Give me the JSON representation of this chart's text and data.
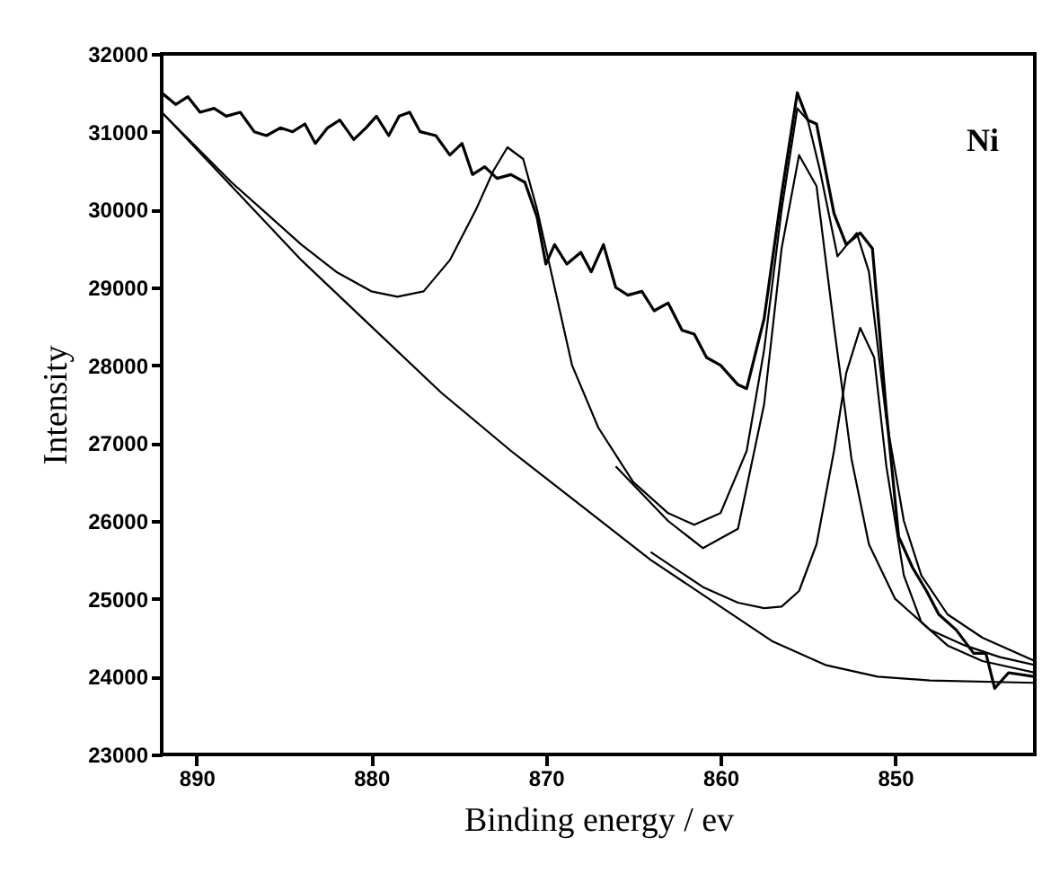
{
  "chart_data": {
    "type": "line",
    "xlabel": "Binding energy / ev",
    "ylabel": "Intensity",
    "annotations": [
      "Ni"
    ],
    "xlim": [
      892,
      842
    ],
    "xticks": [
      890,
      880,
      870,
      860,
      850
    ],
    "ylim": [
      23000,
      32000
    ],
    "yticks": [
      23000,
      24000,
      25000,
      26000,
      27000,
      28000,
      29000,
      30000,
      31000,
      32000
    ],
    "grid": false,
    "marker": "none",
    "line_style": "solid",
    "series": [
      {
        "color": "#000000",
        "x": [
          892,
          891.2,
          890.5,
          889.8,
          889,
          888.3,
          887.5,
          886.7,
          886,
          885.2,
          884.5,
          883.8,
          883.2,
          882.5,
          881.8,
          881,
          880.3,
          879.7,
          879,
          878.4,
          877.8,
          877.2,
          876.3,
          875.5,
          874.8,
          874.2,
          873.5,
          872.8,
          872,
          871.2,
          870.5,
          870,
          869.5,
          868.8,
          868,
          867.4,
          866.7,
          866,
          865.3,
          864.5,
          863.8,
          863,
          862.2,
          861.5,
          860.8,
          860,
          859,
          858.5,
          857.5,
          856.5,
          855.6,
          855,
          854.5,
          853.5,
          852.8,
          852,
          851.3,
          850.5,
          849.8,
          849,
          848.2,
          847.5,
          846.5,
          845.5,
          844.8,
          844.3,
          843.5,
          842
        ],
        "values": [
          31500,
          31350,
          31450,
          31250,
          31300,
          31200,
          31250,
          31000,
          30950,
          31050,
          31000,
          31100,
          30850,
          31050,
          31150,
          30900,
          31050,
          31200,
          30950,
          31200,
          31250,
          31000,
          30950,
          30700,
          30850,
          30450,
          30550,
          30400,
          30450,
          30350,
          29900,
          29300,
          29550,
          29300,
          29450,
          29200,
          29550,
          29000,
          28900,
          28950,
          28700,
          28800,
          28450,
          28400,
          28100,
          28000,
          27750,
          27700,
          28600,
          30200,
          31500,
          31150,
          31100,
          29950,
          29550,
          29700,
          29500,
          27400,
          25800,
          25400,
          25100,
          24800,
          24600,
          24300,
          24300,
          23850,
          24050,
          24000
        ]
      },
      {
        "color": "#000000",
        "x": [
          892,
          890,
          888,
          886,
          884,
          882,
          880,
          878.5,
          877,
          875.5,
          874,
          873,
          872.2,
          871.3,
          870.5,
          869.5,
          868.5,
          867,
          865,
          863,
          861.5,
          860,
          858.5,
          857.5,
          856.5,
          855.6,
          855,
          854.3,
          853.3,
          852.2,
          851.5,
          850.5,
          849.5,
          848.5,
          847,
          845,
          842
        ],
        "values": [
          31250,
          30800,
          30350,
          29950,
          29550,
          29200,
          28950,
          28880,
          28950,
          29350,
          30000,
          30500,
          30800,
          30650,
          30000,
          29000,
          28000,
          27200,
          26500,
          26100,
          25950,
          26100,
          26900,
          28200,
          30000,
          31300,
          31150,
          30500,
          29400,
          29700,
          29200,
          27300,
          26000,
          25300,
          24800,
          24500,
          24200
        ]
      },
      {
        "color": "#000000",
        "x": [
          866,
          863,
          861,
          859,
          857.5,
          856.5,
          855.5,
          854.5,
          853.5,
          852.5,
          851.5,
          850,
          848,
          846,
          844,
          842
        ],
        "values": [
          26700,
          26000,
          25650,
          25900,
          27500,
          29500,
          30700,
          30300,
          28500,
          26800,
          25700,
          25000,
          24600,
          24400,
          24250,
          24150
        ]
      },
      {
        "color": "#000000",
        "x": [
          864,
          861,
          859,
          857.5,
          856.5,
          855.5,
          854.5,
          853.5,
          852.8,
          852,
          851.2,
          850.5,
          849.5,
          848.5,
          847,
          845,
          842
        ],
        "values": [
          25600,
          25150,
          24950,
          24880,
          24900,
          25100,
          25700,
          26900,
          27900,
          28480,
          28100,
          26700,
          25300,
          24700,
          24400,
          24200,
          24050
        ]
      },
      {
        "color": "#000000",
        "x": [
          892,
          888,
          884,
          880,
          876,
          872,
          868,
          864,
          860,
          857,
          854,
          851,
          848,
          842
        ],
        "values": [
          31250,
          30300,
          29350,
          28500,
          27650,
          26900,
          26200,
          25500,
          24900,
          24450,
          24150,
          24000,
          23950,
          23920
        ]
      }
    ]
  }
}
